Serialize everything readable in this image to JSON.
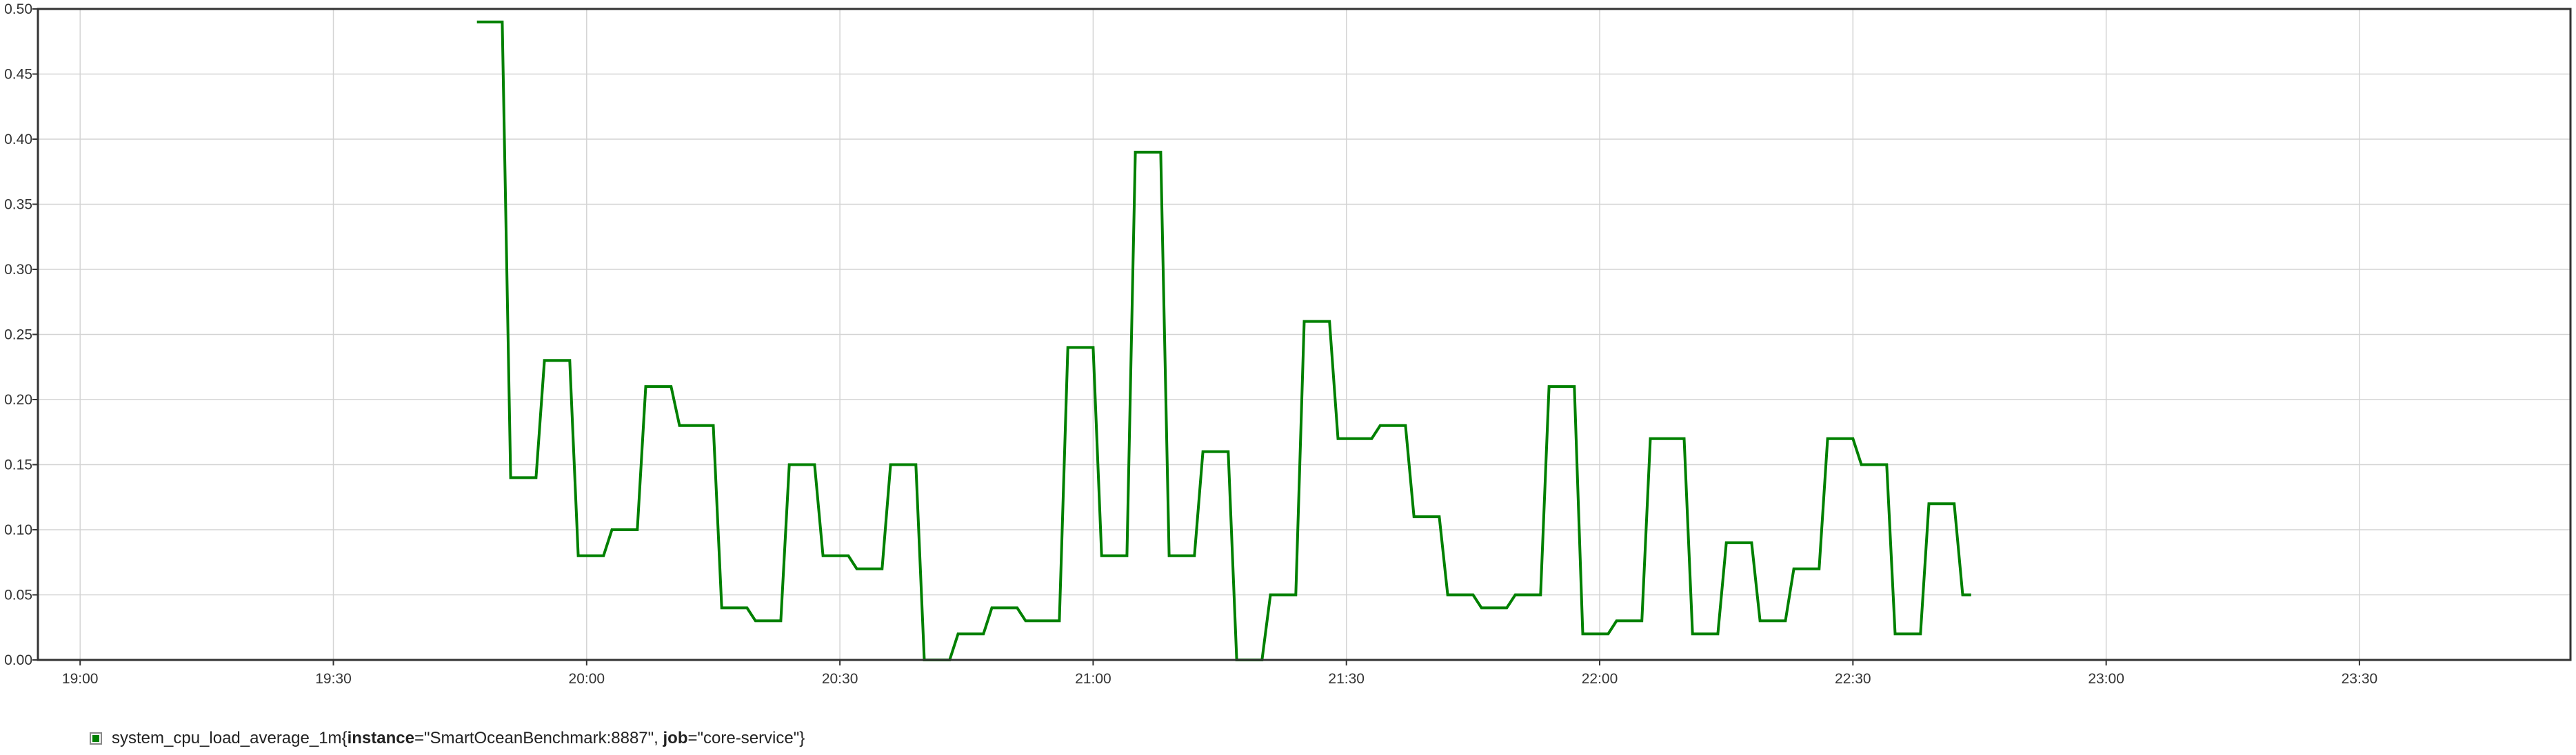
{
  "colors": {
    "series": "#008000",
    "grid": "#d4d4d4",
    "frame": "#333333"
  },
  "legend": {
    "metric": "system_cpu_load_average_1m{",
    "label_instance_key": "instance",
    "label_instance_val": "=\"SmartOceanBenchmark:8887\", ",
    "label_job_key": "job",
    "label_job_val": "=\"core-service\"}"
  },
  "chart_data": {
    "type": "line",
    "title": "",
    "xlabel": "",
    "ylabel": "",
    "xlim": [
      "18:55",
      "23:55"
    ],
    "ylim": [
      0,
      0.5
    ],
    "x_ticks": [
      "19:00",
      "19:30",
      "20:00",
      "20:30",
      "21:00",
      "21:30",
      "22:00",
      "22:30",
      "23:00",
      "23:30"
    ],
    "y_ticks": [
      "0.00",
      "0.05",
      "0.10",
      "0.15",
      "0.20",
      "0.25",
      "0.30",
      "0.35",
      "0.40",
      "0.45",
      "0.50"
    ],
    "grid": true,
    "legend_position": "bottom-left",
    "series": [
      {
        "name": "system_cpu_load_average_1m{instance=\"SmartOceanBenchmark:8887\", job=\"core-service\"}",
        "color": "#008000",
        "points": [
          [
            "19:47",
            0.49
          ],
          [
            "19:50",
            0.49
          ],
          [
            "19:51",
            0.14
          ],
          [
            "19:54",
            0.14
          ],
          [
            "19:55",
            0.23
          ],
          [
            "19:58",
            0.23
          ],
          [
            "19:59",
            0.08
          ],
          [
            "20:02",
            0.08
          ],
          [
            "20:03",
            0.1
          ],
          [
            "20:06",
            0.1
          ],
          [
            "20:07",
            0.21
          ],
          [
            "20:10",
            0.21
          ],
          [
            "20:11",
            0.18
          ],
          [
            "20:15",
            0.18
          ],
          [
            "20:16",
            0.04
          ],
          [
            "20:19",
            0.04
          ],
          [
            "20:20",
            0.03
          ],
          [
            "20:23",
            0.03
          ],
          [
            "20:24",
            0.15
          ],
          [
            "20:27",
            0.15
          ],
          [
            "20:28",
            0.08
          ],
          [
            "20:31",
            0.08
          ],
          [
            "20:32",
            0.07
          ],
          [
            "20:35",
            0.07
          ],
          [
            "20:36",
            0.15
          ],
          [
            "20:39",
            0.15
          ],
          [
            "20:40",
            0.0
          ],
          [
            "20:43",
            0.0
          ],
          [
            "20:44",
            0.02
          ],
          [
            "20:47",
            0.02
          ],
          [
            "20:48",
            0.04
          ],
          [
            "20:51",
            0.04
          ],
          [
            "20:52",
            0.03
          ],
          [
            "20:56",
            0.03
          ],
          [
            "20:57",
            0.24
          ],
          [
            "21:00",
            0.24
          ],
          [
            "21:01",
            0.08
          ],
          [
            "21:04",
            0.08
          ],
          [
            "21:05",
            0.39
          ],
          [
            "21:08",
            0.39
          ],
          [
            "21:09",
            0.08
          ],
          [
            "21:12",
            0.08
          ],
          [
            "21:13",
            0.16
          ],
          [
            "21:16",
            0.16
          ],
          [
            "21:17",
            0.0
          ],
          [
            "21:20",
            0.0
          ],
          [
            "21:21",
            0.05
          ],
          [
            "21:24",
            0.05
          ],
          [
            "21:25",
            0.26
          ],
          [
            "21:28",
            0.26
          ],
          [
            "21:29",
            0.17
          ],
          [
            "21:33",
            0.17
          ],
          [
            "21:34",
            0.18
          ],
          [
            "21:37",
            0.18
          ],
          [
            "21:38",
            0.11
          ],
          [
            "21:41",
            0.11
          ],
          [
            "21:42",
            0.05
          ],
          [
            "21:45",
            0.05
          ],
          [
            "21:46",
            0.04
          ],
          [
            "21:49",
            0.04
          ],
          [
            "21:50",
            0.05
          ],
          [
            "21:53",
            0.05
          ],
          [
            "21:54",
            0.21
          ],
          [
            "21:57",
            0.21
          ],
          [
            "21:58",
            0.02
          ],
          [
            "22:01",
            0.02
          ],
          [
            "22:02",
            0.03
          ],
          [
            "22:05",
            0.03
          ],
          [
            "22:06",
            0.17
          ],
          [
            "22:10",
            0.17
          ],
          [
            "22:11",
            0.02
          ],
          [
            "22:14",
            0.02
          ],
          [
            "22:15",
            0.09
          ],
          [
            "22:18",
            0.09
          ],
          [
            "22:19",
            0.03
          ],
          [
            "22:22",
            0.03
          ],
          [
            "22:23",
            0.07
          ],
          [
            "22:26",
            0.07
          ],
          [
            "22:27",
            0.17
          ],
          [
            "22:30",
            0.17
          ],
          [
            "22:31",
            0.15
          ],
          [
            "22:34",
            0.15
          ],
          [
            "22:35",
            0.02
          ],
          [
            "22:38",
            0.02
          ],
          [
            "22:39",
            0.12
          ],
          [
            "22:42",
            0.12
          ],
          [
            "22:43",
            0.05
          ],
          [
            "22:44",
            0.05
          ]
        ]
      }
    ]
  }
}
